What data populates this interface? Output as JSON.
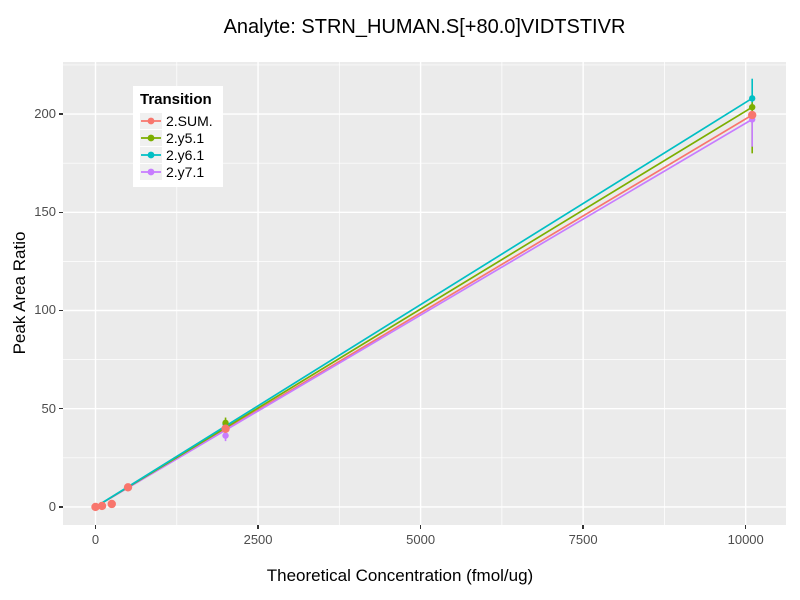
{
  "chart_data": {
    "type": "scatter",
    "title": "Analyte: STRN_HUMAN.S[+80.0]VIDTSTIVR",
    "xlabel": "Theoretical Concentration (fmol/ug)",
    "ylabel": "Peak Area Ratio",
    "legend_title": "Transition",
    "legend_position": "inside-top-left",
    "grid": true,
    "panel_bg": "#EBEBEB",
    "grid_color": "#FFFFFF",
    "tick_color": "#333333",
    "tick_label_color": "#4D4D4D",
    "xlim": [
      -500,
      10620
    ],
    "ylim": [
      -9.2,
      226.5
    ],
    "x_major_ticks": [
      0,
      2500,
      5000,
      7500,
      10000
    ],
    "x_tick_labels": [
      "0",
      "2500",
      "5000",
      "7500",
      "10000"
    ],
    "x_minor_ticks": [
      1250,
      3750,
      6250,
      8750
    ],
    "y_major_ticks": [
      0,
      50,
      100,
      150,
      200
    ],
    "y_tick_labels": [
      "0",
      "50",
      "100",
      "150",
      "200"
    ],
    "y_minor_ticks": [
      25,
      75,
      125,
      175,
      225
    ],
    "series": [
      {
        "name": "2.SUM.",
        "color": "#F8766D",
        "point_radius": 4.2,
        "points": [
          {
            "x": 0,
            "y": 0
          },
          {
            "x": 100,
            "y": 0.5
          },
          {
            "x": 250,
            "y": 1.5
          },
          {
            "x": 500,
            "y": 10.0
          },
          {
            "x": 2000,
            "y": 39.8
          },
          {
            "x": 10100,
            "y": 199.5
          }
        ],
        "fit_line": {
          "x": [
            0,
            10100
          ],
          "y": [
            0,
            199.5
          ]
        }
      },
      {
        "name": "2.y5.1",
        "color": "#7CAE00",
        "point_radius": 3.2,
        "points": [
          {
            "x": 0,
            "y": 0
          },
          {
            "x": 100,
            "y": 0.6
          },
          {
            "x": 250,
            "y": 1.6
          },
          {
            "x": 500,
            "y": 10.3
          },
          {
            "x": 2000,
            "y": 42.8,
            "err": [
              41.0,
              45.5
            ]
          },
          {
            "x": 10100,
            "y": 203.5,
            "err": [
              180.0,
              206.0
            ]
          }
        ],
        "fit_line": {
          "x": [
            0,
            10100
          ],
          "y": [
            0,
            203.5
          ]
        }
      },
      {
        "name": "2.y6.1",
        "color": "#00BFC4",
        "point_radius": 3.2,
        "points": [
          {
            "x": 0,
            "y": 0
          },
          {
            "x": 100,
            "y": 0.6
          },
          {
            "x": 250,
            "y": 1.6
          },
          {
            "x": 500,
            "y": 10.2
          },
          {
            "x": 2000,
            "y": 42.3
          },
          {
            "x": 10100,
            "y": 208.0,
            "err": [
              202.0,
              218.0
            ]
          }
        ],
        "fit_line": {
          "x": [
            0,
            10100
          ],
          "y": [
            0,
            208.0
          ]
        }
      },
      {
        "name": "2.y7.1",
        "color": "#C77CFF",
        "point_radius": 3.2,
        "points": [
          {
            "x": 0,
            "y": 0
          },
          {
            "x": 100,
            "y": 0.5
          },
          {
            "x": 250,
            "y": 1.4
          },
          {
            "x": 500,
            "y": 9.8
          },
          {
            "x": 2000,
            "y": 36.3,
            "err": [
              33.5,
              38.5
            ]
          },
          {
            "x": 10100,
            "y": 197.3,
            "err": [
              183.4,
              200.0
            ]
          }
        ],
        "fit_line": {
          "x": [
            0,
            10100
          ],
          "y": [
            0,
            197.3
          ]
        }
      }
    ]
  }
}
